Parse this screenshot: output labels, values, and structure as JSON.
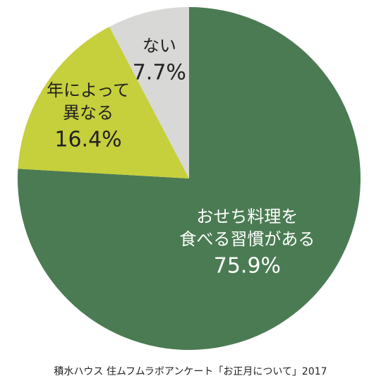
{
  "chart_data": {
    "type": "pie",
    "categories": [
      "おせち料理を\n食べる習慣がある",
      "年によって\n異なる",
      "ない"
    ],
    "values": [
      75.9,
      16.4,
      7.7
    ],
    "value_labels": [
      "75.9%",
      "16.4%",
      "7.7%"
    ],
    "colors": [
      "#4b7b53",
      "#c6cf3c",
      "#d8d8d6"
    ],
    "label_colors": [
      "#ffffff",
      "#222222",
      "#222222"
    ],
    "source": "積水ハウス 住ムフムラボアンケート「お正月について」2017"
  }
}
